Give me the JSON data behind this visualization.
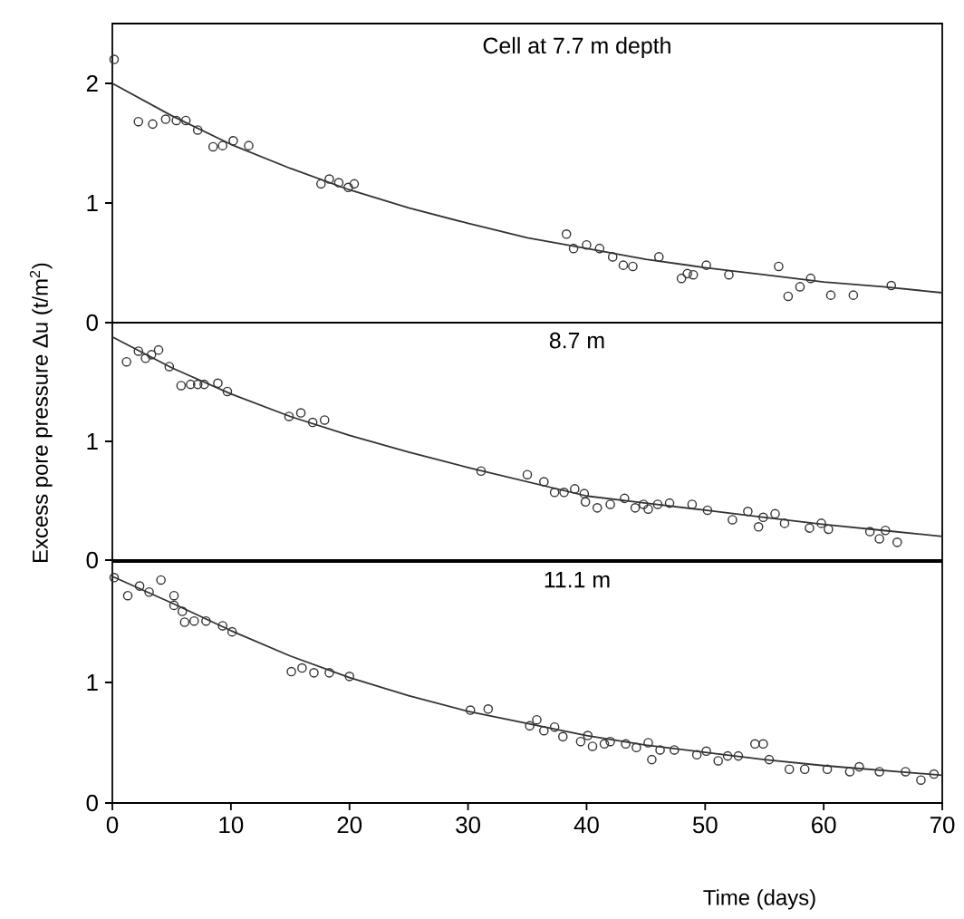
{
  "chart_data": [
    {
      "type": "scatter",
      "title": "Cell at 7.7 m depth",
      "xlim": [
        0,
        70
      ],
      "xticks": [
        0,
        10,
        20,
        30,
        40,
        50,
        60,
        70
      ],
      "ylim": [
        0,
        2.5
      ],
      "yticks": [
        0,
        1,
        2
      ],
      "tick_labels": "y",
      "grid": false,
      "series": [
        {
          "marker": "circle",
          "color": "#333333",
          "x": [
            0.15,
            2.2,
            3.4,
            4.5,
            5.4,
            6.2,
            7.2,
            8.5,
            9.3,
            10.2,
            11.5,
            17.6,
            18.3,
            19.1,
            19.9,
            20.4,
            38.3,
            38.9,
            40.0,
            41.1,
            42.2,
            43.1,
            43.9,
            46.1,
            48.0,
            48.5,
            49.0,
            50.1,
            52.0,
            56.2,
            57.0,
            58.0,
            58.9,
            60.6,
            62.5,
            65.7
          ],
          "values": [
            2.2,
            1.68,
            1.66,
            1.7,
            1.69,
            1.69,
            1.61,
            1.47,
            1.48,
            1.52,
            1.48,
            1.16,
            1.2,
            1.17,
            1.13,
            1.16,
            0.74,
            0.62,
            0.65,
            0.62,
            0.55,
            0.48,
            0.47,
            0.55,
            0.37,
            0.41,
            0.4,
            0.48,
            0.4,
            0.47,
            0.22,
            0.3,
            0.37,
            0.23,
            0.23,
            0.31
          ]
        },
        {
          "type": "line",
          "color": "#333333",
          "x": [
            0,
            5,
            10,
            15,
            20,
            25,
            30,
            35,
            40,
            45,
            50,
            55,
            60,
            65,
            70
          ],
          "values": [
            2.0,
            1.73,
            1.49,
            1.29,
            1.11,
            0.96,
            0.83,
            0.71,
            0.62,
            0.53,
            0.46,
            0.4,
            0.34,
            0.3,
            0.25
          ]
        }
      ]
    },
    {
      "type": "scatter",
      "title": "8.7 m",
      "xlim": [
        0,
        70
      ],
      "xticks": [
        0,
        10,
        20,
        30,
        40,
        50,
        60,
        70
      ],
      "ylim": [
        0,
        2
      ],
      "yticks": [
        0,
        1
      ],
      "tick_labels": "y",
      "ylabel": "Excess pore pressure Δu (t/m$^{2}$)",
      "grid": false,
      "series": [
        {
          "marker": "circle",
          "color": "#333333",
          "x": [
            1.2,
            2.2,
            2.8,
            3.3,
            3.9,
            4.8,
            5.8,
            6.6,
            7.2,
            7.75,
            8.9,
            9.7,
            14.9,
            15.9,
            16.9,
            17.9,
            31.1,
            35.0,
            36.4,
            37.3,
            38.1,
            39.0,
            39.8,
            39.9,
            40.9,
            42.0,
            43.2,
            44.1,
            44.8,
            45.2,
            46.0,
            47.0,
            48.9,
            50.2,
            52.3,
            53.6,
            54.5,
            54.9,
            55.9,
            56.7,
            58.8,
            59.8,
            60.4,
            63.9,
            64.7,
            65.2,
            66.2
          ],
          "values": [
            1.67,
            1.76,
            1.7,
            1.73,
            1.77,
            1.63,
            1.47,
            1.48,
            1.48,
            1.48,
            1.49,
            1.42,
            1.21,
            1.24,
            1.16,
            1.18,
            0.75,
            0.72,
            0.66,
            0.57,
            0.57,
            0.6,
            0.56,
            0.49,
            0.44,
            0.47,
            0.52,
            0.44,
            0.47,
            0.43,
            0.47,
            0.48,
            0.47,
            0.42,
            0.34,
            0.41,
            0.28,
            0.36,
            0.39,
            0.31,
            0.27,
            0.31,
            0.26,
            0.24,
            0.18,
            0.25,
            0.15
          ]
        },
        {
          "type": "line",
          "color": "#333333",
          "x": [
            0,
            5,
            10,
            15,
            20,
            25,
            30,
            35,
            40,
            45,
            50,
            55,
            60,
            65,
            70
          ],
          "values": [
            1.88,
            1.62,
            1.4,
            1.21,
            1.05,
            0.91,
            0.78,
            0.66,
            0.54,
            0.48,
            0.42,
            0.36,
            0.3,
            0.25,
            0.2
          ]
        }
      ]
    },
    {
      "type": "scatter",
      "title": "11.1 m",
      "xlabel": "Time (days)",
      "xlim": [
        0,
        70
      ],
      "xticks": [
        0,
        10,
        20,
        30,
        40,
        50,
        60,
        70
      ],
      "ylim": [
        0,
        2
      ],
      "yticks": [
        0,
        1
      ],
      "grid": false,
      "series": [
        {
          "marker": "circle",
          "color": "#333333",
          "x": [
            0.15,
            1.3,
            2.3,
            3.1,
            4.1,
            5.2,
            5.2,
            5.9,
            6.1,
            6.9,
            7.9,
            9.3,
            10.1,
            15.1,
            16.0,
            17.0,
            18.3,
            20.0,
            30.2,
            31.7,
            35.2,
            35.8,
            36.4,
            37.3,
            38.0,
            39.5,
            40.1,
            40.5,
            41.5,
            42.0,
            43.3,
            44.2,
            45.2,
            45.5,
            46.2,
            47.4,
            49.3,
            50.1,
            51.1,
            51.9,
            52.8,
            54.2,
            54.9,
            55.4,
            57.1,
            58.4,
            60.3,
            62.2,
            63.0,
            64.7,
            66.9,
            68.2,
            69.3
          ],
          "values": [
            1.87,
            1.72,
            1.8,
            1.75,
            1.85,
            1.72,
            1.64,
            1.59,
            1.5,
            1.51,
            1.51,
            1.47,
            1.42,
            1.09,
            1.12,
            1.08,
            1.08,
            1.05,
            0.77,
            0.78,
            0.64,
            0.69,
            0.6,
            0.63,
            0.55,
            0.51,
            0.56,
            0.47,
            0.49,
            0.51,
            0.49,
            0.46,
            0.5,
            0.36,
            0.44,
            0.44,
            0.4,
            0.43,
            0.35,
            0.39,
            0.39,
            0.49,
            0.49,
            0.36,
            0.28,
            0.28,
            0.28,
            0.26,
            0.3,
            0.26,
            0.26,
            0.19,
            0.24
          ]
        },
        {
          "type": "line",
          "color": "#333333",
          "x": [
            0,
            5,
            10,
            15,
            20,
            25,
            30,
            35,
            40,
            45,
            50,
            55,
            60,
            65,
            70
          ],
          "values": [
            1.88,
            1.66,
            1.43,
            1.22,
            1.04,
            0.89,
            0.76,
            0.66,
            0.56,
            0.48,
            0.42,
            0.36,
            0.31,
            0.27,
            0.23
          ]
        }
      ]
    }
  ]
}
